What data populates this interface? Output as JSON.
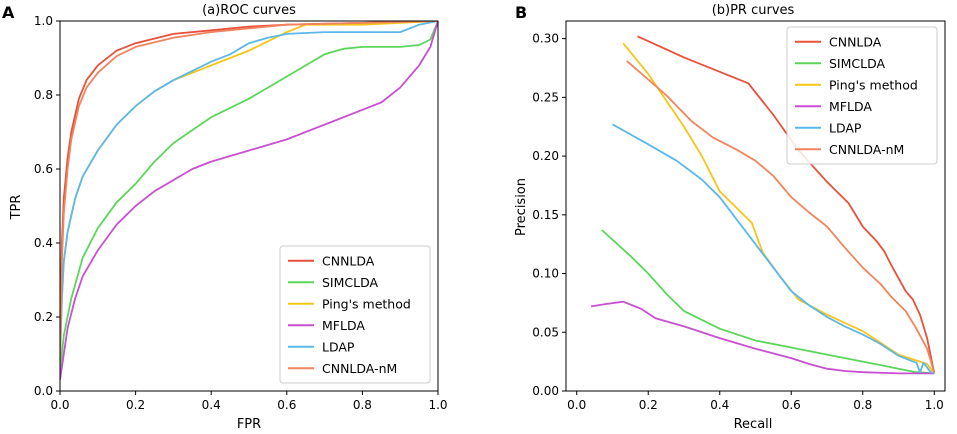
{
  "chart_data": [
    {
      "panel_label": "A",
      "type": "line",
      "title": "(a)ROC curves",
      "xlabel": "FPR",
      "ylabel": "TPR",
      "xlim": [
        0,
        1
      ],
      "ylim": [
        0,
        1
      ],
      "x_ticks": [
        "0.0",
        "0.2",
        "0.4",
        "0.6",
        "0.8",
        "1.0"
      ],
      "y_ticks": [
        "0.0",
        "0.2",
        "0.4",
        "0.6",
        "0.8",
        "1.0"
      ],
      "legend_position": "lower-right",
      "series": [
        {
          "name": "CNNLDA",
          "color": "#e8503a",
          "points": [
            [
              0,
              0.1
            ],
            [
              0.005,
              0.4
            ],
            [
              0.01,
              0.52
            ],
            [
              0.02,
              0.63
            ],
            [
              0.03,
              0.7
            ],
            [
              0.05,
              0.79
            ],
            [
              0.07,
              0.84
            ],
            [
              0.1,
              0.88
            ],
            [
              0.15,
              0.92
            ],
            [
              0.2,
              0.94
            ],
            [
              0.3,
              0.965
            ],
            [
              0.4,
              0.975
            ],
            [
              0.5,
              0.985
            ],
            [
              0.6,
              0.99
            ],
            [
              0.8,
              0.995
            ],
            [
              1.0,
              1.0
            ]
          ]
        },
        {
          "name": "SIMCLDA",
          "color": "#5bd65b",
          "points": [
            [
              0,
              0.05
            ],
            [
              0.01,
              0.15
            ],
            [
              0.03,
              0.25
            ],
            [
              0.06,
              0.36
            ],
            [
              0.1,
              0.44
            ],
            [
              0.15,
              0.51
            ],
            [
              0.2,
              0.56
            ],
            [
              0.25,
              0.62
            ],
            [
              0.3,
              0.67
            ],
            [
              0.4,
              0.74
            ],
            [
              0.5,
              0.79
            ],
            [
              0.55,
              0.82
            ],
            [
              0.6,
              0.85
            ],
            [
              0.65,
              0.88
            ],
            [
              0.7,
              0.91
            ],
            [
              0.75,
              0.925
            ],
            [
              0.8,
              0.93
            ],
            [
              0.9,
              0.93
            ],
            [
              0.95,
              0.935
            ],
            [
              0.98,
              0.95
            ],
            [
              1.0,
              1.0
            ]
          ]
        },
        {
          "name": "Ping's method",
          "color": "#f5c518",
          "points": [
            [
              0,
              0.1
            ],
            [
              0.005,
              0.25
            ],
            [
              0.01,
              0.35
            ],
            [
              0.02,
              0.43
            ],
            [
              0.04,
              0.52
            ],
            [
              0.06,
              0.58
            ],
            [
              0.1,
              0.65
            ],
            [
              0.15,
              0.72
            ],
            [
              0.2,
              0.77
            ],
            [
              0.25,
              0.81
            ],
            [
              0.3,
              0.84
            ],
            [
              0.35,
              0.86
            ],
            [
              0.4,
              0.88
            ],
            [
              0.5,
              0.92
            ],
            [
              0.6,
              0.97
            ],
            [
              0.65,
              0.99
            ],
            [
              0.7,
              0.99
            ],
            [
              0.8,
              0.99
            ],
            [
              0.9,
              0.995
            ],
            [
              1.0,
              1.0
            ]
          ]
        },
        {
          "name": "MFLDA",
          "color": "#c84fd2",
          "points": [
            [
              0,
              0.03
            ],
            [
              0.01,
              0.1
            ],
            [
              0.02,
              0.17
            ],
            [
              0.04,
              0.25
            ],
            [
              0.06,
              0.31
            ],
            [
              0.1,
              0.38
            ],
            [
              0.15,
              0.45
            ],
            [
              0.2,
              0.5
            ],
            [
              0.25,
              0.54
            ],
            [
              0.3,
              0.57
            ],
            [
              0.35,
              0.6
            ],
            [
              0.4,
              0.62
            ],
            [
              0.5,
              0.65
            ],
            [
              0.6,
              0.68
            ],
            [
              0.7,
              0.72
            ],
            [
              0.8,
              0.76
            ],
            [
              0.85,
              0.78
            ],
            [
              0.9,
              0.82
            ],
            [
              0.95,
              0.88
            ],
            [
              0.98,
              0.93
            ],
            [
              1.0,
              1.0
            ]
          ]
        },
        {
          "name": "LDAP",
          "color": "#5ab8ea",
          "points": [
            [
              0,
              0.08
            ],
            [
              0.005,
              0.25
            ],
            [
              0.01,
              0.35
            ],
            [
              0.02,
              0.43
            ],
            [
              0.04,
              0.52
            ],
            [
              0.06,
              0.58
            ],
            [
              0.1,
              0.65
            ],
            [
              0.15,
              0.72
            ],
            [
              0.2,
              0.77
            ],
            [
              0.25,
              0.81
            ],
            [
              0.3,
              0.84
            ],
            [
              0.35,
              0.865
            ],
            [
              0.4,
              0.89
            ],
            [
              0.45,
              0.91
            ],
            [
              0.5,
              0.94
            ],
            [
              0.55,
              0.955
            ],
            [
              0.6,
              0.965
            ],
            [
              0.7,
              0.97
            ],
            [
              0.8,
              0.97
            ],
            [
              0.9,
              0.97
            ],
            [
              0.95,
              0.99
            ],
            [
              1.0,
              1.0
            ]
          ]
        },
        {
          "name": "CNNLDA-nM",
          "color": "#f0845c",
          "points": [
            [
              0,
              0.08
            ],
            [
              0.005,
              0.35
            ],
            [
              0.01,
              0.48
            ],
            [
              0.02,
              0.6
            ],
            [
              0.03,
              0.68
            ],
            [
              0.05,
              0.77
            ],
            [
              0.07,
              0.82
            ],
            [
              0.1,
              0.86
            ],
            [
              0.15,
              0.905
            ],
            [
              0.2,
              0.93
            ],
            [
              0.3,
              0.955
            ],
            [
              0.4,
              0.97
            ],
            [
              0.5,
              0.98
            ],
            [
              0.6,
              0.99
            ],
            [
              0.8,
              0.995
            ],
            [
              1.0,
              1.0
            ]
          ]
        }
      ]
    },
    {
      "panel_label": "B",
      "type": "line",
      "title": "(b)PR curves",
      "xlabel": "Recall",
      "ylabel": "Precision",
      "xlim": [
        -0.03,
        1.03
      ],
      "ylim": [
        0,
        0.315
      ],
      "x_ticks": [
        "0.0",
        "0.2",
        "0.4",
        "0.6",
        "0.8",
        "1.0"
      ],
      "y_ticks": [
        "0.00",
        "0.05",
        "0.10",
        "0.15",
        "0.20",
        "0.25",
        "0.30"
      ],
      "legend_position": "upper-right",
      "series": [
        {
          "name": "CNNLDA",
          "color": "#e8503a",
          "points": [
            [
              0.17,
              0.302
            ],
            [
              0.3,
              0.284
            ],
            [
              0.48,
              0.262
            ],
            [
              0.55,
              0.235
            ],
            [
              0.62,
              0.205
            ],
            [
              0.7,
              0.178
            ],
            [
              0.76,
              0.16
            ],
            [
              0.8,
              0.14
            ],
            [
              0.84,
              0.127
            ],
            [
              0.86,
              0.119
            ],
            [
              0.88,
              0.107
            ],
            [
              0.9,
              0.096
            ],
            [
              0.92,
              0.085
            ],
            [
              0.94,
              0.078
            ],
            [
              0.96,
              0.065
            ],
            [
              0.98,
              0.045
            ],
            [
              0.99,
              0.03
            ],
            [
              1.0,
              0.015
            ]
          ]
        },
        {
          "name": "SIMCLDA",
          "color": "#5bd65b",
          "points": [
            [
              0.07,
              0.137
            ],
            [
              0.15,
              0.115
            ],
            [
              0.2,
              0.1
            ],
            [
              0.25,
              0.083
            ],
            [
              0.3,
              0.068
            ],
            [
              0.4,
              0.053
            ],
            [
              0.5,
              0.043
            ],
            [
              0.6,
              0.037
            ],
            [
              0.7,
              0.031
            ],
            [
              0.8,
              0.025
            ],
            [
              0.9,
              0.019
            ],
            [
              0.95,
              0.016
            ],
            [
              1.0,
              0.015
            ]
          ]
        },
        {
          "name": "Ping's method",
          "color": "#f5c518",
          "points": [
            [
              0.13,
              0.296
            ],
            [
              0.2,
              0.27
            ],
            [
              0.3,
              0.225
            ],
            [
              0.35,
              0.2
            ],
            [
              0.4,
              0.17
            ],
            [
              0.45,
              0.155
            ],
            [
              0.49,
              0.143
            ],
            [
              0.52,
              0.118
            ],
            [
              0.57,
              0.097
            ],
            [
              0.62,
              0.078
            ],
            [
              0.7,
              0.065
            ],
            [
              0.75,
              0.058
            ],
            [
              0.8,
              0.051
            ],
            [
              0.85,
              0.041
            ],
            [
              0.9,
              0.031
            ],
            [
              0.95,
              0.026
            ],
            [
              0.98,
              0.023
            ],
            [
              1.0,
              0.015
            ]
          ]
        },
        {
          "name": "MFLDA",
          "color": "#c84fd2",
          "points": [
            [
              0.04,
              0.072
            ],
            [
              0.08,
              0.074
            ],
            [
              0.13,
              0.076
            ],
            [
              0.18,
              0.07
            ],
            [
              0.22,
              0.062
            ],
            [
              0.3,
              0.055
            ],
            [
              0.4,
              0.045
            ],
            [
              0.5,
              0.036
            ],
            [
              0.6,
              0.028
            ],
            [
              0.65,
              0.023
            ],
            [
              0.7,
              0.019
            ],
            [
              0.75,
              0.017
            ],
            [
              0.8,
              0.016
            ],
            [
              0.9,
              0.015
            ],
            [
              1.0,
              0.015
            ]
          ]
        },
        {
          "name": "LDAP",
          "color": "#5ab8ea",
          "points": [
            [
              0.1,
              0.227
            ],
            [
              0.2,
              0.21
            ],
            [
              0.28,
              0.196
            ],
            [
              0.35,
              0.18
            ],
            [
              0.4,
              0.165
            ],
            [
              0.45,
              0.145
            ],
            [
              0.5,
              0.125
            ],
            [
              0.55,
              0.105
            ],
            [
              0.6,
              0.085
            ],
            [
              0.65,
              0.073
            ],
            [
              0.7,
              0.063
            ],
            [
              0.75,
              0.055
            ],
            [
              0.8,
              0.048
            ],
            [
              0.85,
              0.04
            ],
            [
              0.9,
              0.03
            ],
            [
              0.95,
              0.024
            ],
            [
              0.96,
              0.016
            ],
            [
              0.97,
              0.024
            ],
            [
              0.99,
              0.016
            ],
            [
              1.0,
              0.015
            ]
          ]
        },
        {
          "name": "CNNLDA-nM",
          "color": "#f0845c",
          "points": [
            [
              0.14,
              0.281
            ],
            [
              0.25,
              0.252
            ],
            [
              0.32,
              0.23
            ],
            [
              0.38,
              0.216
            ],
            [
              0.45,
              0.205
            ],
            [
              0.5,
              0.196
            ],
            [
              0.55,
              0.183
            ],
            [
              0.6,
              0.165
            ],
            [
              0.65,
              0.152
            ],
            [
              0.7,
              0.14
            ],
            [
              0.75,
              0.122
            ],
            [
              0.8,
              0.105
            ],
            [
              0.85,
              0.091
            ],
            [
              0.88,
              0.08
            ],
            [
              0.92,
              0.068
            ],
            [
              0.95,
              0.053
            ],
            [
              0.98,
              0.036
            ],
            [
              0.99,
              0.026
            ],
            [
              1.0,
              0.015
            ]
          ]
        }
      ]
    }
  ]
}
